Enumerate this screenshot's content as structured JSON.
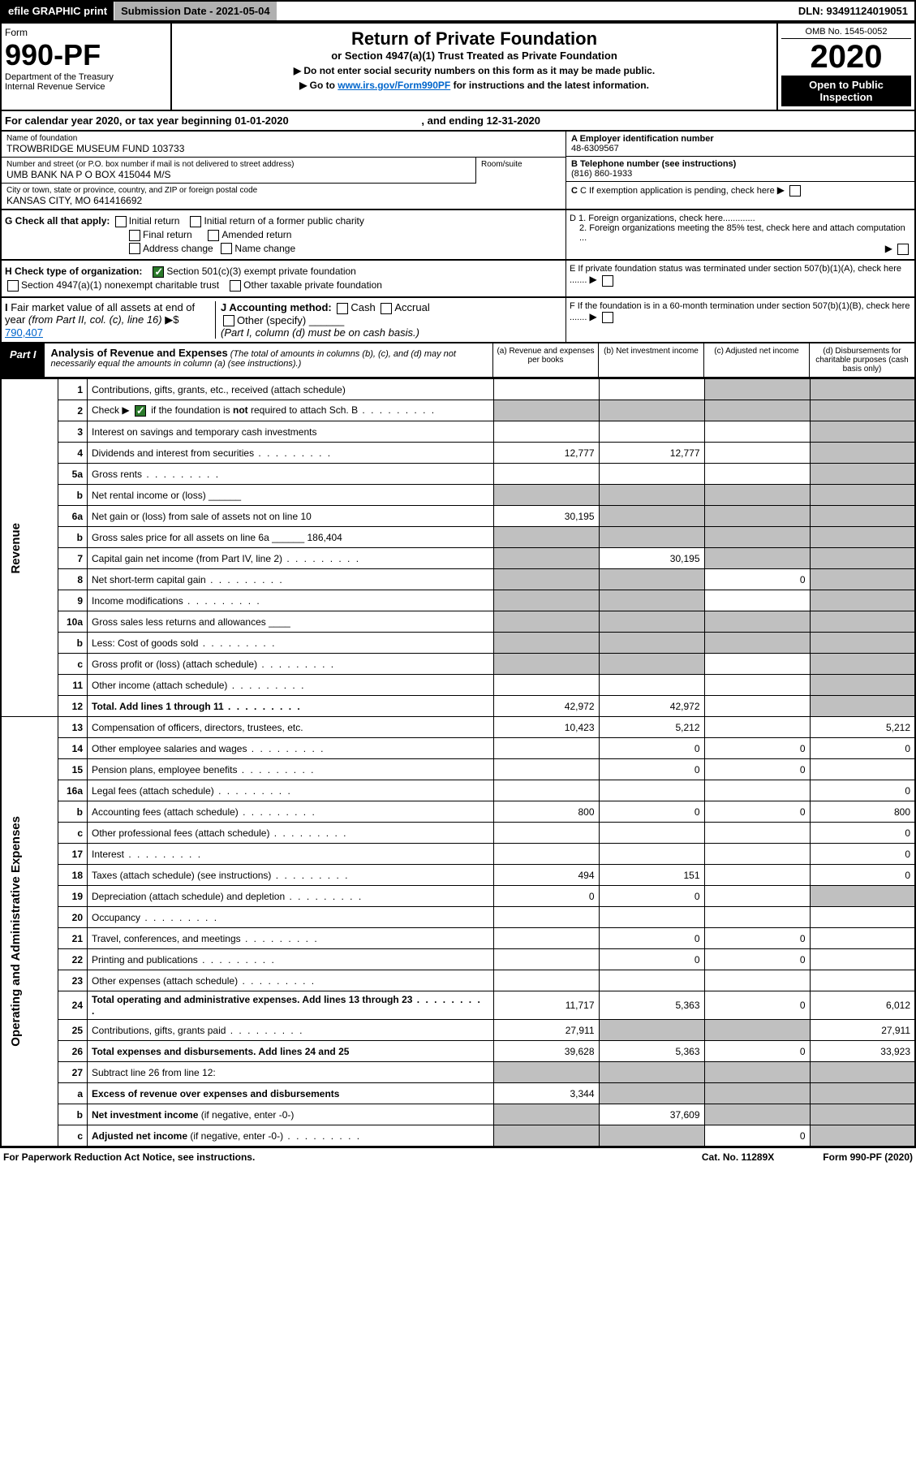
{
  "topbar": {
    "efile": "efile GRAPHIC print",
    "subdate_lbl": "Submission Date - 2021-05-04",
    "dln": "DLN: 93491124019051"
  },
  "header": {
    "form_word": "Form",
    "form_num": "990-PF",
    "dept": "Department of the Treasury\nInternal Revenue Service",
    "title": "Return of Private Foundation",
    "subtitle": "or Section 4947(a)(1) Trust Treated as Private Foundation",
    "note1": "▶ Do not enter social security numbers on this form as it may be made public.",
    "note2_pre": "▶ Go to ",
    "note2_link": "www.irs.gov/Form990PF",
    "note2_post": " for instructions and the latest information.",
    "omb": "OMB No. 1545-0052",
    "year": "2020",
    "open": "Open to Public Inspection"
  },
  "cal": {
    "text": "For calendar year 2020, or tax year beginning 01-01-2020",
    "end": ", and ending 12-31-2020"
  },
  "id": {
    "name_lbl": "Name of foundation",
    "name": "TROWBRIDGE MUSEUM FUND 103733",
    "addr_lbl": "Number and street (or P.O. box number if mail is not delivered to street address)",
    "addr": "UMB BANK NA P O BOX 415044 M/S",
    "room_lbl": "Room/suite",
    "city_lbl": "City or town, state or province, country, and ZIP or foreign postal code",
    "city": "KANSAS CITY, MO  641416692",
    "ein_lbl": "A Employer identification number",
    "ein": "48-6309567",
    "tel_lbl": "B Telephone number (see instructions)",
    "tel": "(816) 860-1933",
    "c": "C If exemption application is pending, check here",
    "d1": "D 1. Foreign organizations, check here.............",
    "d2": "2. Foreign organizations meeting the 85% test, check here and attach computation ...",
    "e": "E  If private foundation status was terminated under section 507(b)(1)(A), check here .......",
    "f": "F  If the foundation is in a 60-month termination under section 507(b)(1)(B), check here .......",
    "g_lbl": "G Check all that apply:",
    "g_opts": [
      "Initial return",
      "Initial return of a former public charity",
      "Final return",
      "Amended return",
      "Address change",
      "Name change"
    ],
    "h_lbl": "H Check type of organization:",
    "h1": "Section 501(c)(3) exempt private foundation",
    "h2": "Section 4947(a)(1) nonexempt charitable trust",
    "h3": "Other taxable private foundation",
    "i_lbl": "I Fair market value of all assets at end of year (from Part II, col. (c), line 16) ▶$",
    "i_val": "790,407",
    "j_lbl": "J Accounting method:",
    "j_opts": [
      "Cash",
      "Accrual"
    ],
    "j_other": "Other (specify)",
    "j_note": "(Part I, column (d) must be on cash basis.)"
  },
  "part1": {
    "tab": "Part I",
    "title": "Analysis of Revenue and Expenses",
    "note": "(The total of amounts in columns (b), (c), and (d) may not necessarily equal the amounts in column (a) (see instructions).)",
    "cols": {
      "a": "(a)   Revenue and expenses per books",
      "b": "(b)   Net investment income",
      "c": "(c)   Adjusted net income",
      "d": "(d)   Disbursements for charitable purposes (cash basis only)"
    },
    "side_rev": "Revenue",
    "side_exp": "Operating and Administrative Expenses"
  },
  "rows": [
    {
      "n": "1",
      "d": "Contributions, gifts, grants, etc., received (attach schedule)",
      "a": "",
      "b": "",
      "c": "g",
      "dd": "g"
    },
    {
      "n": "2",
      "d": "Check ▶ [✓] if the foundation is <b>not</b> required to attach Sch. B",
      "dots": true,
      "a": "g",
      "b": "g",
      "c": "g",
      "dd": "g"
    },
    {
      "n": "3",
      "d": "Interest on savings and temporary cash investments",
      "a": "",
      "b": "",
      "c": "",
      "dd": "g"
    },
    {
      "n": "4",
      "d": "Dividends and interest from securities",
      "dots": true,
      "a": "12,777",
      "b": "12,777",
      "c": "",
      "dd": "g"
    },
    {
      "n": "5a",
      "d": "Gross rents",
      "dots": true,
      "a": "",
      "b": "",
      "c": "",
      "dd": "g"
    },
    {
      "n": "b",
      "d": "Net rental income or (loss)  ______",
      "a": "g",
      "b": "g",
      "c": "g",
      "dd": "g"
    },
    {
      "n": "6a",
      "d": "Net gain or (loss) from sale of assets not on line 10",
      "a": "30,195",
      "b": "g",
      "c": "g",
      "dd": "g"
    },
    {
      "n": "b",
      "d": "Gross sales price for all assets on line 6a ______ 186,404",
      "a": "g",
      "b": "g",
      "c": "g",
      "dd": "g"
    },
    {
      "n": "7",
      "d": "Capital gain net income (from Part IV, line 2)",
      "dots": true,
      "a": "g",
      "b": "30,195",
      "c": "g",
      "dd": "g"
    },
    {
      "n": "8",
      "d": "Net short-term capital gain",
      "dots": true,
      "a": "g",
      "b": "g",
      "c": "0",
      "dd": "g"
    },
    {
      "n": "9",
      "d": "Income modifications",
      "dots": true,
      "a": "g",
      "b": "g",
      "c": "",
      "dd": "g"
    },
    {
      "n": "10a",
      "d": "Gross sales less returns and allowances  ____",
      "a": "g",
      "b": "g",
      "c": "g",
      "dd": "g"
    },
    {
      "n": "b",
      "d": "Less: Cost of goods sold",
      "dots": true,
      "a": "g",
      "b": "g",
      "c": "g",
      "dd": "g"
    },
    {
      "n": "c",
      "d": "Gross profit or (loss) (attach schedule)",
      "dots": true,
      "a": "g",
      "b": "g",
      "c": "",
      "dd": "g"
    },
    {
      "n": "11",
      "d": "Other income (attach schedule)",
      "dots": true,
      "a": "",
      "b": "",
      "c": "",
      "dd": "g"
    },
    {
      "n": "12",
      "d": "<b>Total.</b> Add lines 1 through 11",
      "dots": true,
      "a": "42,972",
      "b": "42,972",
      "c": "",
      "dd": "g",
      "bold": true
    },
    {
      "n": "13",
      "d": "Compensation of officers, directors, trustees, etc.",
      "a": "10,423",
      "b": "5,212",
      "c": "",
      "dd": "5,212"
    },
    {
      "n": "14",
      "d": "Other employee salaries and wages",
      "dots": true,
      "a": "",
      "b": "0",
      "c": "0",
      "dd": "0"
    },
    {
      "n": "15",
      "d": "Pension plans, employee benefits",
      "dots": true,
      "a": "",
      "b": "0",
      "c": "0",
      "dd": ""
    },
    {
      "n": "16a",
      "d": "Legal fees (attach schedule)",
      "dots": true,
      "a": "",
      "b": "",
      "c": "",
      "dd": "0"
    },
    {
      "n": "b",
      "d": "Accounting fees (attach schedule)",
      "dots": true,
      "a": "800",
      "b": "0",
      "c": "0",
      "dd": "800"
    },
    {
      "n": "c",
      "d": "Other professional fees (attach schedule)",
      "dots": true,
      "a": "",
      "b": "",
      "c": "",
      "dd": "0"
    },
    {
      "n": "17",
      "d": "Interest",
      "dots": true,
      "a": "",
      "b": "",
      "c": "",
      "dd": "0"
    },
    {
      "n": "18",
      "d": "Taxes (attach schedule) (see instructions)",
      "dots": true,
      "a": "494",
      "b": "151",
      "c": "",
      "dd": "0"
    },
    {
      "n": "19",
      "d": "Depreciation (attach schedule) and depletion",
      "dots": true,
      "a": "0",
      "b": "0",
      "c": "",
      "dd": "g"
    },
    {
      "n": "20",
      "d": "Occupancy",
      "dots": true,
      "a": "",
      "b": "",
      "c": "",
      "dd": ""
    },
    {
      "n": "21",
      "d": "Travel, conferences, and meetings",
      "dots": true,
      "a": "",
      "b": "0",
      "c": "0",
      "dd": ""
    },
    {
      "n": "22",
      "d": "Printing and publications",
      "dots": true,
      "a": "",
      "b": "0",
      "c": "0",
      "dd": ""
    },
    {
      "n": "23",
      "d": "Other expenses (attach schedule)",
      "dots": true,
      "a": "",
      "b": "",
      "c": "",
      "dd": ""
    },
    {
      "n": "24",
      "d": "<b>Total operating and administrative expenses.</b> Add lines 13 through 23",
      "dots": true,
      "a": "11,717",
      "b": "5,363",
      "c": "0",
      "dd": "6,012",
      "bold": true
    },
    {
      "n": "25",
      "d": "Contributions, gifts, grants paid",
      "dots": true,
      "a": "27,911",
      "b": "g",
      "c": "g",
      "dd": "27,911"
    },
    {
      "n": "26",
      "d": "<b>Total expenses and disbursements.</b> Add lines 24 and 25",
      "a": "39,628",
      "b": "5,363",
      "c": "0",
      "dd": "33,923",
      "bold": true
    },
    {
      "n": "27",
      "d": "Subtract line 26 from line 12:",
      "a": "g",
      "b": "g",
      "c": "g",
      "dd": "g"
    },
    {
      "n": "a",
      "d": "<b>Excess of revenue over expenses and disbursements</b>",
      "a": "3,344",
      "b": "g",
      "c": "g",
      "dd": "g"
    },
    {
      "n": "b",
      "d": "<b>Net investment income</b> (if negative, enter -0-)",
      "a": "g",
      "b": "37,609",
      "c": "g",
      "dd": "g"
    },
    {
      "n": "c",
      "d": "<b>Adjusted net income</b> (if negative, enter -0-)",
      "dots": true,
      "a": "g",
      "b": "g",
      "c": "0",
      "dd": "g"
    }
  ],
  "footer": {
    "l": "For Paperwork Reduction Act Notice, see instructions.",
    "c": "Cat. No. 11289X",
    "r": "Form 990-PF (2020)"
  }
}
